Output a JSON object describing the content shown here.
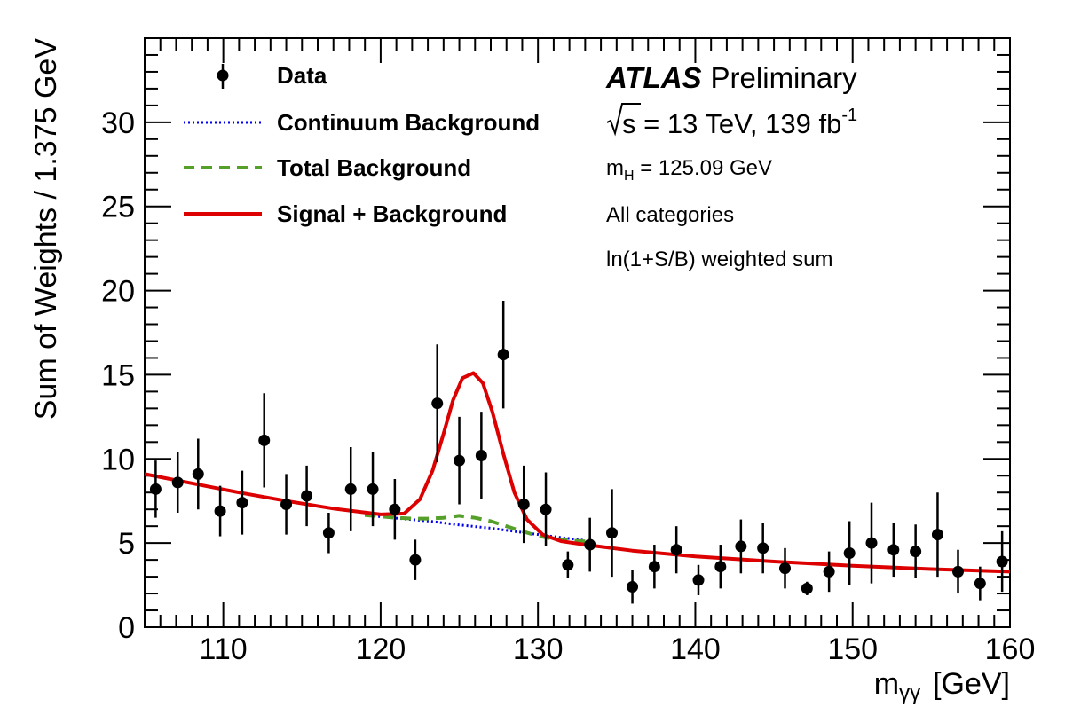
{
  "chart_data": {
    "type": "scatter",
    "xlabel": "m",
    "xlabel_sub": "γγ",
    "xlabel_unit": "[GeV]",
    "ylabel": "Sum of Weights /  1.375 GeV",
    "xlim": [
      105,
      160
    ],
    "ylim": [
      0,
      35
    ],
    "xticks": [
      "110",
      "120",
      "130",
      "140",
      "150",
      "160"
    ],
    "yticks": [
      "0",
      "5",
      "10",
      "15",
      "20",
      "25",
      "30"
    ],
    "legend": {
      "placement": "top-left",
      "entries": [
        "Data",
        "Continuum Background",
        "Total Background",
        "Signal + Background"
      ]
    },
    "annotations": {
      "experiment": "ATLAS",
      "status": "Preliminary",
      "energy_sqrt": "s",
      "energy_text": " = 13 TeV, 139 fb",
      "energy_sup": "-1",
      "mass_m": "m",
      "mass_sub": "H",
      "mass_text": " = 125.09 GeV",
      "categories": "All categories",
      "weighting": "ln(1+S/B) weighted sum"
    },
    "colors": {
      "data": "#000000",
      "continuum": "#0000ee",
      "total": "#55a02a",
      "signal": "#dd0000"
    },
    "series": [
      {
        "name": "Data",
        "x": [
          105.7,
          107.1,
          108.4,
          109.8,
          111.2,
          112.6,
          114.0,
          115.3,
          116.7,
          118.1,
          119.5,
          120.9,
          122.2,
          123.6,
          125.0,
          126.4,
          127.8,
          129.1,
          130.5,
          131.9,
          133.3,
          134.7,
          136.0,
          137.4,
          138.8,
          140.2,
          141.6,
          142.9,
          144.3,
          145.7,
          147.1,
          148.5,
          149.8,
          151.2,
          152.6,
          154.0,
          155.4,
          156.7,
          158.1,
          159.5
        ],
        "y": [
          8.2,
          8.6,
          9.1,
          6.9,
          7.4,
          11.1,
          7.3,
          7.8,
          5.6,
          8.2,
          8.2,
          7.0,
          4.0,
          13.3,
          9.9,
          10.2,
          16.2,
          7.3,
          7.0,
          3.7,
          4.9,
          5.6,
          2.4,
          3.6,
          4.6,
          2.8,
          3.6,
          4.8,
          4.7,
          3.5,
          2.3,
          3.3,
          4.4,
          5.0,
          4.6,
          4.5,
          5.5,
          3.3,
          2.6,
          3.9
        ],
        "yerr": [
          1.7,
          1.8,
          2.1,
          1.5,
          1.9,
          2.8,
          1.8,
          1.8,
          1.2,
          2.5,
          2.2,
          1.8,
          1.2,
          3.5,
          2.6,
          2.6,
          3.2,
          2.3,
          2.2,
          0.8,
          1.6,
          2.6,
          1.0,
          1.3,
          1.4,
          0.9,
          1.3,
          1.6,
          1.5,
          1.2,
          0.4,
          1.2,
          1.9,
          2.4,
          1.6,
          1.6,
          2.5,
          1.3,
          1.0,
          1.8
        ]
      },
      {
        "name": "Continuum Background",
        "x": [
          119,
          121,
          123,
          125,
          127,
          129,
          131,
          133
        ],
        "y": [
          6.65,
          6.48,
          6.31,
          6.08,
          5.88,
          5.63,
          5.38,
          5.15
        ]
      },
      {
        "name": "Total Background",
        "x": [
          119,
          121,
          122,
          123,
          124,
          125,
          126,
          127,
          128,
          129,
          130,
          131,
          132,
          133
        ],
        "y": [
          6.65,
          6.5,
          6.45,
          6.45,
          6.5,
          6.62,
          6.5,
          6.3,
          6.0,
          5.7,
          5.42,
          5.25,
          5.15,
          5.1
        ]
      },
      {
        "name": "Signal + Background",
        "x": [
          105,
          108,
          111,
          114,
          117,
          120,
          121.5,
          122.5,
          123.3,
          124,
          124.6,
          125.2,
          125.9,
          126.5,
          127.1,
          127.8,
          128.5,
          129.3,
          130.3,
          131.5,
          133,
          136,
          140,
          145,
          150,
          155,
          160
        ],
        "y": [
          9.1,
          8.55,
          8.0,
          7.5,
          7.05,
          6.7,
          6.75,
          7.6,
          9.3,
          11.5,
          13.5,
          14.8,
          15.1,
          14.5,
          12.8,
          10.3,
          8.0,
          6.4,
          5.5,
          5.1,
          4.9,
          4.55,
          4.2,
          3.9,
          3.65,
          3.45,
          3.3
        ]
      }
    ]
  }
}
